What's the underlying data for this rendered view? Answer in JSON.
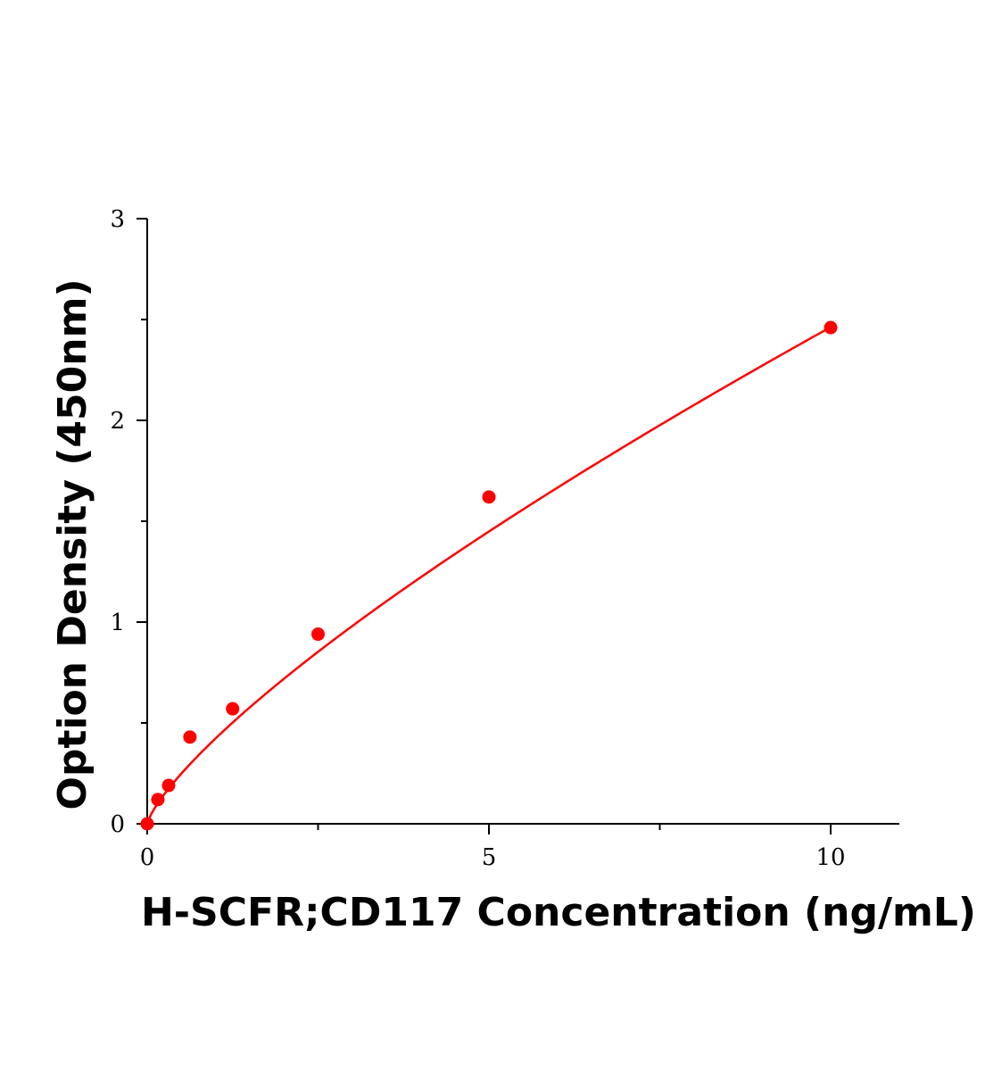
{
  "chart_data": {
    "type": "scatter",
    "title": "",
    "xlabel": "H-SCFR;CD117 Concentration (ng/mL)",
    "ylabel": "Option Density (450nm)",
    "xlim": [
      0,
      11
    ],
    "ylim": [
      0,
      3
    ],
    "x_ticks": [
      0,
      5,
      10
    ],
    "x_minor_ticks": [
      2.5,
      7.5
    ],
    "y_ticks": [
      0,
      1,
      2,
      3
    ],
    "y_minor_ticks": [
      0.5,
      1.5,
      2.5
    ],
    "grid": false,
    "legend": "none",
    "series": [
      {
        "type": "scatter",
        "color": "#ff0000",
        "x": [
          0,
          0.156,
          0.313,
          0.625,
          1.25,
          2.5,
          5,
          10
        ],
        "y": [
          0.0,
          0.12,
          0.19,
          0.43,
          0.57,
          0.94,
          1.62,
          2.46
        ]
      },
      {
        "type": "fit-curve",
        "color": "#ff0000",
        "model": "power",
        "a": 0.423,
        "b": 0.765,
        "x_range": [
          0,
          10
        ]
      }
    ]
  }
}
